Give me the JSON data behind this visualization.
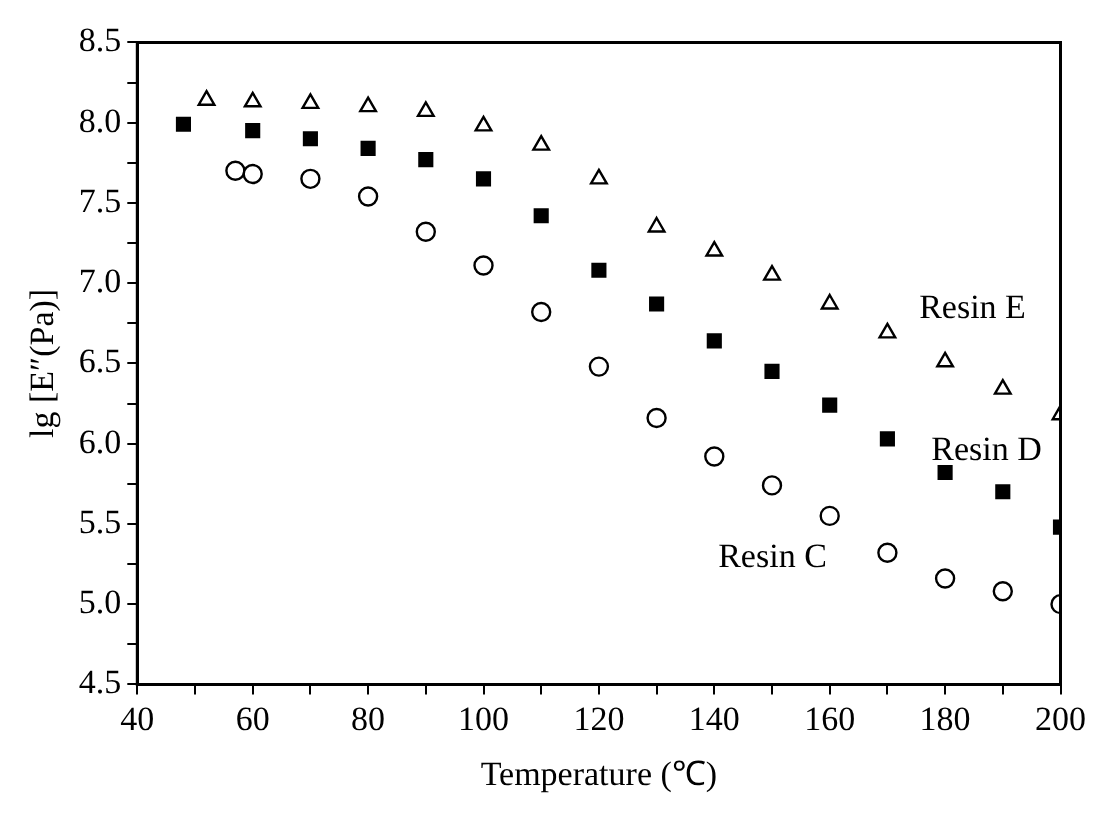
{
  "chart_data": {
    "type": "scatter",
    "xlabel": "Temperature (℃)",
    "ylabel": "lg [E″(Pa)]",
    "xlim": [
      40,
      200
    ],
    "xticks": [
      40,
      {
        "value": 50,
        "label": null
      },
      60,
      {
        "value": 70,
        "label": null
      },
      80,
      {
        "value": 90,
        "label": null
      },
      100,
      {
        "value": 110,
        "label": null
      },
      120,
      {
        "value": 130,
        "label": null
      },
      140,
      {
        "value": 150,
        "label": null
      },
      160,
      {
        "value": 170,
        "label": null
      },
      180,
      {
        "value": 190,
        "label": null
      },
      200
    ],
    "ylim": [
      4.5,
      8.5
    ],
    "yticks": [
      {
        "value": 4.5,
        "label": "4.5"
      },
      {
        "value": 4.75,
        "label": null
      },
      {
        "value": 5,
        "label": "5.0"
      },
      {
        "value": 5.25,
        "label": null
      },
      {
        "value": 5.5,
        "label": "5.5"
      },
      {
        "value": 5.75,
        "label": null
      },
      {
        "value": 6,
        "label": "6.0"
      },
      {
        "value": 6.25,
        "label": null
      },
      {
        "value": 6.5,
        "label": "6.5"
      },
      {
        "value": 6.75,
        "label": null
      },
      {
        "value": 7,
        "label": "7.0"
      },
      {
        "value": 7.25,
        "label": null
      },
      {
        "value": 7.5,
        "label": "7.5"
      },
      {
        "value": 7.75,
        "label": null
      },
      {
        "value": 8,
        "label": "8.0"
      },
      {
        "value": 8.25,
        "label": null
      },
      {
        "value": 8.5,
        "label": "8.5"
      }
    ],
    "grid": false,
    "legend": false,
    "series": [
      {
        "name": "Resin E",
        "color": "#000000",
        "marker": "triangle",
        "x": [
          52,
          60,
          70,
          80,
          90,
          100,
          110,
          120,
          130,
          140,
          150,
          160,
          170,
          180,
          190,
          200
        ],
        "values": [
          8.14,
          8.13,
          8.12,
          8.1,
          8.07,
          7.98,
          7.86,
          7.65,
          7.35,
          7.2,
          7.05,
          6.87,
          6.69,
          6.51,
          6.34,
          6.18
        ]
      },
      {
        "name": "Resin D",
        "color": "#000000",
        "marker": "square",
        "x": [
          48,
          60,
          70,
          80,
          90,
          100,
          110,
          120,
          130,
          140,
          150,
          160,
          170,
          180,
          190,
          200
        ],
        "values": [
          7.99,
          7.95,
          7.9,
          7.84,
          7.77,
          7.65,
          7.42,
          7.08,
          6.87,
          6.64,
          6.45,
          6.24,
          6.03,
          5.82,
          5.7,
          5.48
        ]
      },
      {
        "name": "Resin C",
        "color": "#000000",
        "marker": "circle",
        "x": [
          57,
          60,
          70,
          80,
          90,
          100,
          110,
          120,
          130,
          140,
          150,
          160,
          170,
          180,
          190,
          200
        ],
        "values": [
          7.7,
          7.68,
          7.65,
          7.54,
          7.32,
          7.11,
          6.82,
          6.48,
          6.16,
          5.92,
          5.74,
          5.55,
          5.32,
          5.16,
          5.08,
          5.0
        ]
      }
    ]
  }
}
